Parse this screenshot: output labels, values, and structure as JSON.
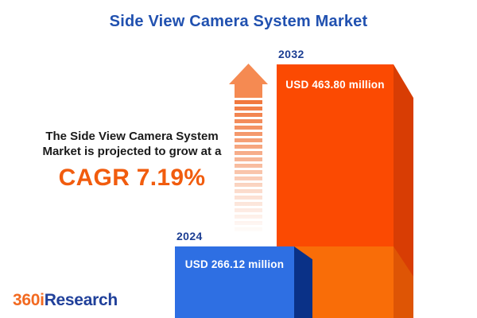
{
  "title": "Side View Camera System Market",
  "annotation": {
    "line1": "The Side View Camera System",
    "line2": "Market is projected to grow at a",
    "cagr": "CAGR 7.19%"
  },
  "bars": [
    {
      "year": "2024",
      "value_label": "USD 266.12 million"
    },
    {
      "year": "2032",
      "value_label": "USD 463.80 million"
    }
  ],
  "logo": {
    "part1": "360i",
    "part2": "Research"
  },
  "icons": {
    "growth_arrow": "up-arrow-fading-stripes"
  },
  "colors": {
    "title_blue": "#2151b0",
    "year_label_blue": "#1c3e93",
    "annotation_text": "#1a1a1a",
    "cagr_orange": "#f15c0e",
    "bar_2024_front": "#2e6fe3",
    "bar_2024_side": "#0a3187",
    "bar_2032_front_top": "#fb4a02",
    "bar_2032_front_bottom": "#f96d08",
    "bar_2032_side_top": "#d83d04",
    "bar_2032_side_bottom": "#de5505",
    "arrow_orange": "#f58a52",
    "logo_orange": "#f26a21",
    "logo_blue": "#20409a",
    "background": "#ffffff"
  },
  "chart_data": {
    "type": "bar",
    "title": "Side View Camera System Market",
    "categories": [
      "2024",
      "2032"
    ],
    "values": [
      266.12,
      463.8
    ],
    "unit": "USD million",
    "value_labels": [
      "USD 266.12 million",
      "USD 463.80 million"
    ],
    "cagr_percent": 7.19,
    "annotation": "The Side View Camera System Market is projected to grow at a CAGR 7.19%",
    "bar_colors": [
      "#2e6fe3",
      "#fb4a02"
    ],
    "style": "3d-bars-bleeding-off-bottom",
    "grid": false,
    "legend": false
  }
}
